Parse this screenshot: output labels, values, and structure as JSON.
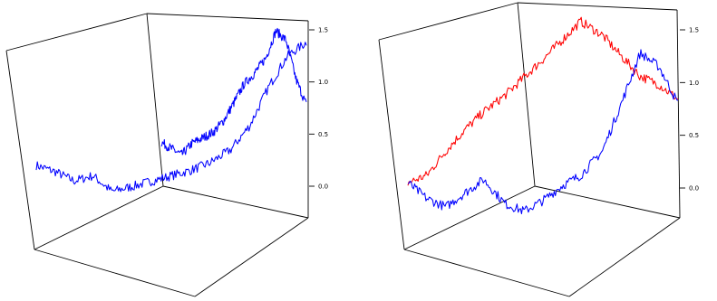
{
  "chart_data": [
    {
      "type": "line",
      "subtype": "3d-perspective",
      "panel": "left",
      "title": "",
      "xlabel": "",
      "ylabel": "",
      "zlabel": "",
      "z_axis_side": "right",
      "zlim": [
        -0.25,
        1.6
      ],
      "z_ticks": [
        0.0,
        0.5,
        1.0,
        1.5
      ],
      "z_tick_labels": [
        "0.0",
        "0.5",
        "1.0",
        "1.5"
      ],
      "grid": false,
      "legend": "none",
      "series": [
        {
          "color": "#0000ff",
          "style": "random-walk trace spanning floor and back wall",
          "points": [
            [
              0.0,
              0.2
            ],
            [
              0.07,
              0.14
            ],
            [
              0.14,
              0.05
            ],
            [
              0.21,
              0.1
            ],
            [
              0.28,
              -0.05
            ],
            [
              0.36,
              0.0
            ],
            [
              0.43,
              0.05
            ],
            [
              0.5,
              0.1
            ],
            [
              0.57,
              0.15
            ],
            [
              0.64,
              0.22
            ],
            [
              0.72,
              0.35
            ],
            [
              0.79,
              0.58
            ],
            [
              0.86,
              0.95
            ],
            [
              0.93,
              1.25
            ],
            [
              1.0,
              1.38
            ]
          ]
        },
        {
          "color": "#0000ff",
          "style": "random-walk trace on back wall",
          "points": [
            [
              0.0,
              0.42
            ],
            [
              0.07,
              0.36
            ],
            [
              0.14,
              0.3
            ],
            [
              0.21,
              0.41
            ],
            [
              0.28,
              0.46
            ],
            [
              0.36,
              0.52
            ],
            [
              0.43,
              0.63
            ],
            [
              0.5,
              0.8
            ],
            [
              0.57,
              0.98
            ],
            [
              0.64,
              1.08
            ],
            [
              0.72,
              1.23
            ],
            [
              0.79,
              1.49
            ],
            [
              0.86,
              1.4
            ],
            [
              0.93,
              1.02
            ],
            [
              1.0,
              0.78
            ]
          ]
        }
      ]
    },
    {
      "type": "line",
      "subtype": "3d-perspective",
      "panel": "right",
      "title": "",
      "xlabel": "",
      "ylabel": "",
      "zlabel": "",
      "z_axis_side": "right",
      "zlim": [
        -0.25,
        1.6
      ],
      "z_ticks": [
        0.0,
        0.5,
        1.0,
        1.5
      ],
      "z_tick_labels": [
        "0.0",
        "0.5",
        "1.0",
        "1.5"
      ],
      "grid": false,
      "legend": "none",
      "series": [
        {
          "color": "#ff0000",
          "points": [
            [
              0.0,
              0.05
            ],
            [
              0.07,
              0.12
            ],
            [
              0.14,
              0.35
            ],
            [
              0.21,
              0.55
            ],
            [
              0.28,
              0.72
            ],
            [
              0.36,
              0.88
            ],
            [
              0.43,
              1.05
            ],
            [
              0.5,
              1.22
            ],
            [
              0.57,
              1.4
            ],
            [
              0.64,
              1.58
            ],
            [
              0.72,
              1.45
            ],
            [
              0.79,
              1.25
            ],
            [
              0.86,
              1.06
            ],
            [
              0.93,
              0.98
            ],
            [
              1.0,
              0.84
            ]
          ]
        },
        {
          "color": "#0000ff",
          "points": [
            [
              0.0,
              0.05
            ],
            [
              0.07,
              -0.1
            ],
            [
              0.14,
              -0.18
            ],
            [
              0.21,
              -0.05
            ],
            [
              0.28,
              0.08
            ],
            [
              0.36,
              -0.15
            ],
            [
              0.43,
              -0.22
            ],
            [
              0.5,
              -0.12
            ],
            [
              0.57,
              0.02
            ],
            [
              0.64,
              0.12
            ],
            [
              0.72,
              0.35
            ],
            [
              0.79,
              0.8
            ],
            [
              0.86,
              1.28
            ],
            [
              0.93,
              1.15
            ],
            [
              1.0,
              0.8
            ]
          ]
        }
      ]
    }
  ]
}
